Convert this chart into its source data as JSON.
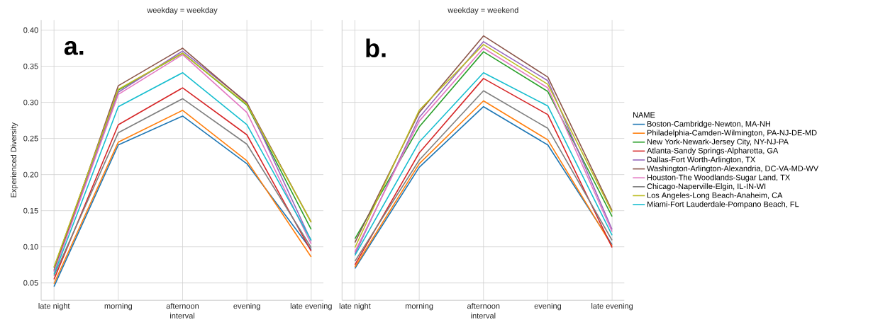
{
  "chart_data": [
    {
      "type": "line",
      "title": "weekday = weekday",
      "xlabel": "interval",
      "ylabel": "Experienced Diversity",
      "annotations": [
        "a."
      ],
      "categories": [
        "late night",
        "morning",
        "afternoon",
        "evening",
        "late evening"
      ],
      "ylim": [
        0.026,
        0.414
      ],
      "yticks": [
        {
          "value": 0.05,
          "label": "0.05"
        },
        {
          "value": 0.1,
          "label": "0.10"
        },
        {
          "value": 0.15,
          "label": "0.15"
        },
        {
          "value": 0.2,
          "label": "0.20"
        },
        {
          "value": 0.25,
          "label": "0.25"
        },
        {
          "value": 0.3,
          "label": "0.30"
        },
        {
          "value": 0.35,
          "label": "0.35"
        },
        {
          "value": 0.4,
          "label": "0.40"
        }
      ],
      "grid": true,
      "legend": false,
      "series": [
        {
          "color": "#1f77b4",
          "values": [
            0.045,
            0.241,
            0.281,
            0.215,
            0.096
          ]
        },
        {
          "color": "#ff7f0e",
          "values": [
            0.049,
            0.245,
            0.289,
            0.219,
            0.086
          ]
        },
        {
          "color": "#2ca02c",
          "values": [
            0.071,
            0.317,
            0.368,
            0.296,
            0.124
          ]
        },
        {
          "color": "#d62728",
          "values": [
            0.055,
            0.269,
            0.32,
            0.255,
            0.094
          ]
        },
        {
          "color": "#9467bd",
          "values": [
            0.067,
            0.314,
            0.371,
            0.3,
            0.108
          ]
        },
        {
          "color": "#8c564b",
          "values": [
            0.067,
            0.323,
            0.375,
            0.299,
            0.134
          ]
        },
        {
          "color": "#e377c2",
          "values": [
            0.065,
            0.311,
            0.366,
            0.286,
            0.104
          ]
        },
        {
          "color": "#7f7f7f",
          "values": [
            0.06,
            0.258,
            0.305,
            0.242,
            0.099
          ]
        },
        {
          "color": "#bcbd22",
          "values": [
            0.072,
            0.318,
            0.368,
            0.297,
            0.134
          ]
        },
        {
          "color": "#17becf",
          "values": [
            0.062,
            0.294,
            0.341,
            0.269,
            0.109
          ]
        }
      ]
    },
    {
      "type": "line",
      "title": "weekday = weekend",
      "xlabel": "interval",
      "annotations": [
        "b."
      ],
      "legend_title": "NAME",
      "categories": [
        "late night",
        "morning",
        "afternoon",
        "evening",
        "late evening"
      ],
      "ylim": [
        0.026,
        0.414
      ],
      "yticks": [
        {
          "value": 0.05,
          "label": null
        },
        {
          "value": 0.1,
          "label": null
        },
        {
          "value": 0.15,
          "label": null
        },
        {
          "value": 0.2,
          "label": null
        },
        {
          "value": 0.25,
          "label": null
        },
        {
          "value": 0.3,
          "label": null
        },
        {
          "value": 0.35,
          "label": null
        },
        {
          "value": 0.4,
          "label": null
        }
      ],
      "tick_labels": "x",
      "grid": true,
      "legend": "right",
      "series": [
        {
          "name": "Boston-Cambridge-Newton, MA-NH",
          "color": "#1f77b4",
          "values": [
            0.07,
            0.21,
            0.294,
            0.241,
            0.103
          ]
        },
        {
          "name": "Philadelphia-Camden-Wilmington, PA-NJ-DE-MD",
          "color": "#ff7f0e",
          "values": [
            0.072,
            0.215,
            0.302,
            0.248,
            0.101
          ]
        },
        {
          "name": "New York-Newark-Jersey City, NY-NJ-PA",
          "color": "#2ca02c",
          "values": [
            0.111,
            0.266,
            0.37,
            0.315,
            0.142
          ]
        },
        {
          "name": "Atlanta-Sandy Springs-Alpharetta, GA",
          "color": "#d62728",
          "values": [
            0.075,
            0.23,
            0.333,
            0.283,
            0.099
          ]
        },
        {
          "name": "Dallas-Fort Worth-Arlington, TX",
          "color": "#9467bd",
          "values": [
            0.09,
            0.279,
            0.384,
            0.33,
            0.124
          ]
        },
        {
          "name": "Washington-Arlington-Alexandria, DC-VA-MD-WV",
          "color": "#8c564b",
          "values": [
            0.106,
            0.286,
            0.392,
            0.335,
            0.15
          ]
        },
        {
          "name": "Houston-The Woodlands-Sugar Land, TX",
          "color": "#e377c2",
          "values": [
            0.093,
            0.274,
            0.375,
            0.32,
            0.121
          ]
        },
        {
          "name": "Chicago-Naperville-Elgin, IL-IN-WI",
          "color": "#7f7f7f",
          "values": [
            0.08,
            0.22,
            0.316,
            0.264,
            0.109
          ]
        },
        {
          "name": "Los Angeles-Long Beach-Anaheim, CA",
          "color": "#bcbd22",
          "values": [
            0.099,
            0.289,
            0.38,
            0.325,
            0.148
          ]
        },
        {
          "name": "Miami-Fort Lauderdale-Pompano Beach, FL",
          "color": "#17becf",
          "values": [
            0.088,
            0.245,
            0.341,
            0.295,
            0.116
          ]
        }
      ]
    }
  ]
}
